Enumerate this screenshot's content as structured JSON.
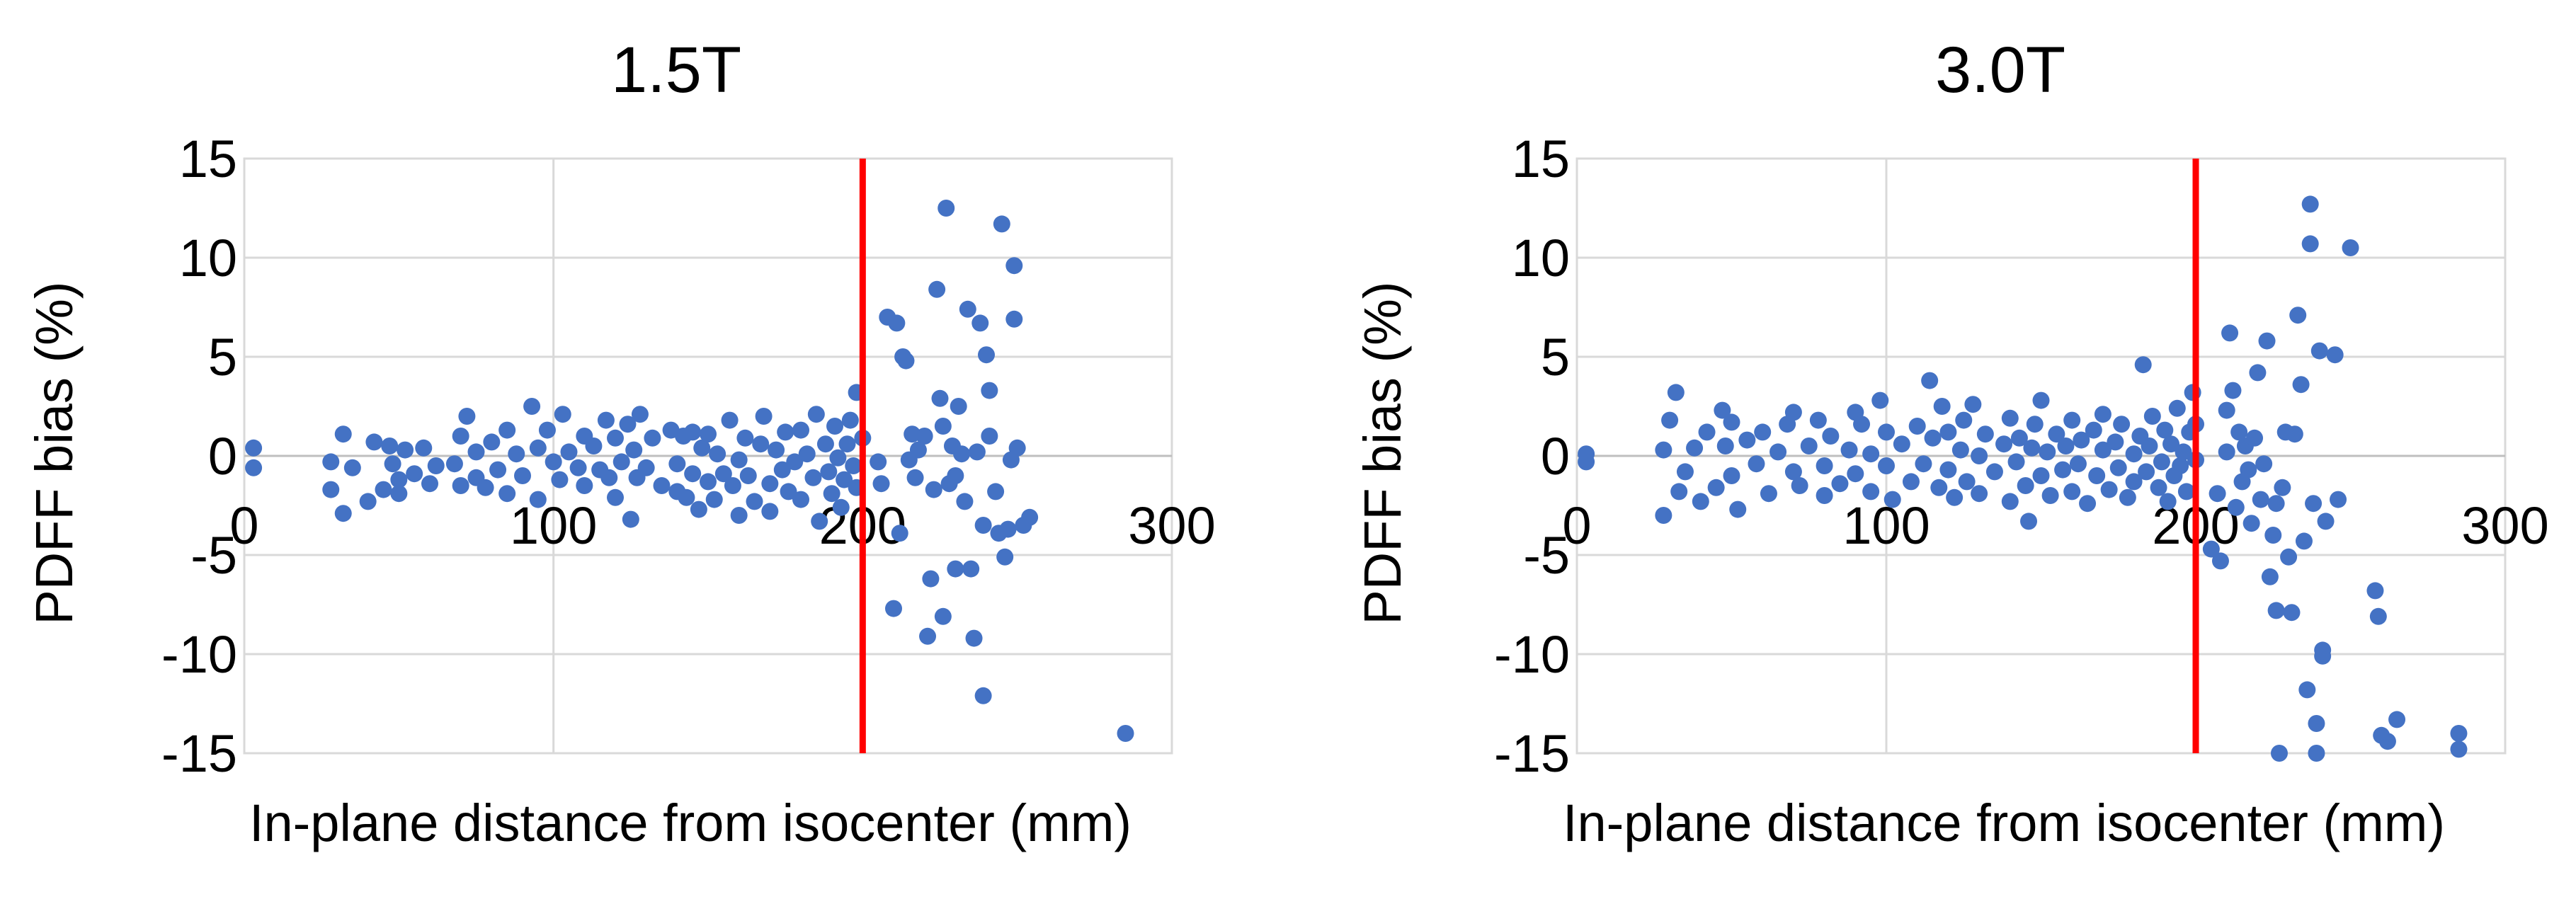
{
  "colors": {
    "points": "#4472c4",
    "threshold": "#ff0000",
    "grid": "#d9d9d9"
  },
  "chart_data": [
    {
      "type": "scatter",
      "title": "1.5T",
      "xlabel": "In-plane distance from isocenter (mm)",
      "ylabel": "PDFF bias (%)",
      "xlim": [
        0,
        300
      ],
      "ylim": [
        -15,
        15
      ],
      "x_ticks": [
        0,
        100,
        200,
        300
      ],
      "y_ticks": [
        15,
        10,
        5,
        0,
        -5,
        -10,
        -15
      ],
      "grid": true,
      "legend": "none",
      "reference_line_x": 200,
      "points": [
        [
          3,
          0.4
        ],
        [
          3,
          -0.6
        ],
        [
          28,
          -0.3
        ],
        [
          28,
          -1.7
        ],
        [
          32,
          1.1
        ],
        [
          32,
          -2.9
        ],
        [
          35,
          -0.6
        ],
        [
          40,
          -2.3
        ],
        [
          42,
          0.7
        ],
        [
          45,
          -1.7
        ],
        [
          47,
          0.5
        ],
        [
          48,
          -0.4
        ],
        [
          50,
          -1.2
        ],
        [
          50,
          -1.9
        ],
        [
          52,
          0.3
        ],
        [
          55,
          -0.9
        ],
        [
          58,
          0.4
        ],
        [
          60,
          -1.4
        ],
        [
          62,
          -0.5
        ],
        [
          68,
          -0.4
        ],
        [
          70,
          1.0
        ],
        [
          70,
          -1.5
        ],
        [
          72,
          2.0
        ],
        [
          75,
          0.2
        ],
        [
          75,
          -1.1
        ],
        [
          78,
          -1.6
        ],
        [
          80,
          0.7
        ],
        [
          82,
          -0.7
        ],
        [
          85,
          1.3
        ],
        [
          85,
          -1.9
        ],
        [
          88,
          0.1
        ],
        [
          90,
          -1.0
        ],
        [
          93,
          2.5
        ],
        [
          95,
          0.4
        ],
        [
          95,
          -2.2
        ],
        [
          98,
          1.3
        ],
        [
          100,
          -0.3
        ],
        [
          102,
          -1.2
        ],
        [
          103,
          2.1
        ],
        [
          105,
          0.2
        ],
        [
          108,
          -0.6
        ],
        [
          110,
          1.0
        ],
        [
          110,
          -1.5
        ],
        [
          113,
          0.5
        ],
        [
          115,
          -0.7
        ],
        [
          117,
          1.8
        ],
        [
          118,
          -1.1
        ],
        [
          120,
          0.9
        ],
        [
          120,
          -2.1
        ],
        [
          122,
          -0.3
        ],
        [
          124,
          1.6
        ],
        [
          125,
          -3.2
        ],
        [
          126,
          0.3
        ],
        [
          127,
          -1.1
        ],
        [
          128,
          2.1
        ],
        [
          130,
          -0.6
        ],
        [
          132,
          0.9
        ],
        [
          135,
          -1.5
        ],
        [
          138,
          1.3
        ],
        [
          140,
          -1.8
        ],
        [
          140,
          -0.4
        ],
        [
          142,
          1.0
        ],
        [
          143,
          -2.1
        ],
        [
          145,
          1.2
        ],
        [
          145,
          -0.9
        ],
        [
          147,
          -2.7
        ],
        [
          148,
          0.4
        ],
        [
          150,
          -1.3
        ],
        [
          150,
          1.1
        ],
        [
          152,
          -2.2
        ],
        [
          153,
          0.1
        ],
        [
          155,
          -0.9
        ],
        [
          157,
          1.8
        ],
        [
          158,
          -1.5
        ],
        [
          160,
          -0.2
        ],
        [
          160,
          -3.0
        ],
        [
          162,
          0.9
        ],
        [
          163,
          -1.0
        ],
        [
          165,
          -2.3
        ],
        [
          167,
          0.6
        ],
        [
          168,
          2.0
        ],
        [
          170,
          -1.4
        ],
        [
          170,
          -2.8
        ],
        [
          172,
          0.3
        ],
        [
          174,
          -0.7
        ],
        [
          175,
          1.2
        ],
        [
          176,
          -1.8
        ],
        [
          178,
          -0.3
        ],
        [
          180,
          1.3
        ],
        [
          180,
          -2.2
        ],
        [
          182,
          0.1
        ],
        [
          184,
          -1.1
        ],
        [
          185,
          2.1
        ],
        [
          186,
          -3.3
        ],
        [
          188,
          0.6
        ],
        [
          189,
          -0.8
        ],
        [
          190,
          -1.9
        ],
        [
          191,
          1.5
        ],
        [
          192,
          -0.1
        ],
        [
          193,
          -2.6
        ],
        [
          194,
          -1.2
        ],
        [
          195,
          0.6
        ],
        [
          196,
          1.8
        ],
        [
          197,
          -0.5
        ],
        [
          198,
          3.2
        ],
        [
          198,
          -1.6
        ],
        [
          200,
          0.9
        ],
        [
          205,
          -0.3
        ],
        [
          206,
          -1.4
        ],
        [
          208,
          7.0
        ],
        [
          210,
          -7.7
        ],
        [
          211,
          6.7
        ],
        [
          212,
          -3.9
        ],
        [
          213,
          5.0
        ],
        [
          214,
          4.8
        ],
        [
          215,
          -0.2
        ],
        [
          216,
          1.1
        ],
        [
          217,
          -1.1
        ],
        [
          218,
          0.3
        ],
        [
          220,
          1.0
        ],
        [
          221,
          -9.1
        ],
        [
          222,
          -6.2
        ],
        [
          223,
          -1.7
        ],
        [
          224,
          8.4
        ],
        [
          225,
          2.9
        ],
        [
          226,
          1.5
        ],
        [
          226,
          -8.1
        ],
        [
          227,
          12.5
        ],
        [
          228,
          -1.4
        ],
        [
          229,
          0.5
        ],
        [
          230,
          -5.7
        ],
        [
          230,
          -1.0
        ],
        [
          231,
          2.5
        ],
        [
          232,
          0.1
        ],
        [
          233,
          -2.3
        ],
        [
          234,
          7.4
        ],
        [
          235,
          -5.7
        ],
        [
          236,
          -9.2
        ],
        [
          237,
          0.2
        ],
        [
          238,
          6.7
        ],
        [
          239,
          -3.5
        ],
        [
          239,
          -12.1
        ],
        [
          240,
          5.1
        ],
        [
          241,
          3.3
        ],
        [
          241,
          1.0
        ],
        [
          243,
          -1.8
        ],
        [
          244,
          -3.9
        ],
        [
          245,
          11.7
        ],
        [
          246,
          -5.1
        ],
        [
          247,
          -3.7
        ],
        [
          248,
          -0.2
        ],
        [
          249,
          9.6
        ],
        [
          249,
          6.9
        ],
        [
          250,
          0.4
        ],
        [
          252,
          -3.5
        ],
        [
          254,
          -3.1
        ],
        [
          285,
          -14.0
        ]
      ]
    },
    {
      "type": "scatter",
      "title": "3.0T",
      "xlabel": "In-plane distance from isocenter (mm)",
      "ylabel": "PDFF bias (%)",
      "xlim": [
        0,
        300
      ],
      "ylim": [
        -15,
        15
      ],
      "x_ticks": [
        0,
        100,
        200,
        300
      ],
      "y_ticks": [
        15,
        10,
        5,
        0,
        -5,
        -10,
        -15
      ],
      "grid": true,
      "legend": "none",
      "reference_line_x": 200,
      "points": [
        [
          3,
          0.1
        ],
        [
          3,
          -0.3
        ],
        [
          28,
          0.3
        ],
        [
          28,
          -3.0
        ],
        [
          30,
          1.8
        ],
        [
          32,
          3.2
        ],
        [
          33,
          -1.8
        ],
        [
          35,
          -0.8
        ],
        [
          38,
          0.4
        ],
        [
          40,
          -2.3
        ],
        [
          42,
          1.2
        ],
        [
          45,
          -1.6
        ],
        [
          47,
          2.3
        ],
        [
          48,
          0.5
        ],
        [
          50,
          -1.0
        ],
        [
          50,
          1.7
        ],
        [
          52,
          -2.7
        ],
        [
          55,
          0.8
        ],
        [
          58,
          -0.4
        ],
        [
          60,
          1.2
        ],
        [
          62,
          -1.9
        ],
        [
          65,
          0.2
        ],
        [
          68,
          1.6
        ],
        [
          70,
          -0.8
        ],
        [
          70,
          2.2
        ],
        [
          72,
          -1.5
        ],
        [
          75,
          0.5
        ],
        [
          78,
          1.8
        ],
        [
          80,
          -2.0
        ],
        [
          80,
          -0.5
        ],
        [
          82,
          1.0
        ],
        [
          85,
          -1.4
        ],
        [
          88,
          0.3
        ],
        [
          90,
          2.2
        ],
        [
          90,
          -0.9
        ],
        [
          92,
          1.6
        ],
        [
          95,
          -1.8
        ],
        [
          95,
          0.1
        ],
        [
          98,
          2.8
        ],
        [
          100,
          -0.5
        ],
        [
          100,
          1.2
        ],
        [
          102,
          -2.2
        ],
        [
          105,
          0.6
        ],
        [
          108,
          -1.3
        ],
        [
          110,
          1.5
        ],
        [
          112,
          -0.4
        ],
        [
          114,
          3.8
        ],
        [
          115,
          0.9
        ],
        [
          117,
          -1.6
        ],
        [
          118,
          2.5
        ],
        [
          120,
          -0.7
        ],
        [
          120,
          1.2
        ],
        [
          122,
          -2.1
        ],
        [
          124,
          0.3
        ],
        [
          125,
          1.8
        ],
        [
          126,
          -1.3
        ],
        [
          128,
          2.6
        ],
        [
          130,
          0.0
        ],
        [
          130,
          -1.9
        ],
        [
          132,
          1.1
        ],
        [
          135,
          -0.8
        ],
        [
          138,
          0.6
        ],
        [
          140,
          -2.3
        ],
        [
          140,
          1.9
        ],
        [
          142,
          -0.3
        ],
        [
          143,
          0.9
        ],
        [
          145,
          -1.5
        ],
        [
          146,
          -3.3
        ],
        [
          147,
          0.4
        ],
        [
          148,
          1.6
        ],
        [
          150,
          -1.0
        ],
        [
          150,
          2.8
        ],
        [
          152,
          0.2
        ],
        [
          153,
          -2.0
        ],
        [
          155,
          1.1
        ],
        [
          157,
          -0.7
        ],
        [
          158,
          0.5
        ],
        [
          160,
          -1.8
        ],
        [
          160,
          1.8
        ],
        [
          162,
          -0.4
        ],
        [
          163,
          0.8
        ],
        [
          165,
          -2.4
        ],
        [
          167,
          1.3
        ],
        [
          168,
          -1.0
        ],
        [
          170,
          0.3
        ],
        [
          170,
          2.1
        ],
        [
          172,
          -1.7
        ],
        [
          174,
          0.7
        ],
        [
          175,
          -0.6
        ],
        [
          176,
          1.6
        ],
        [
          178,
          -2.1
        ],
        [
          180,
          0.1
        ],
        [
          180,
          -1.3
        ],
        [
          182,
          1.0
        ],
        [
          183,
          4.6
        ],
        [
          184,
          -0.8
        ],
        [
          185,
          0.5
        ],
        [
          186,
          2.0
        ],
        [
          188,
          -1.6
        ],
        [
          189,
          -0.3
        ],
        [
          190,
          1.3
        ],
        [
          191,
          -2.3
        ],
        [
          192,
          0.6
        ],
        [
          193,
          -1.0
        ],
        [
          194,
          2.4
        ],
        [
          195,
          -0.5
        ],
        [
          196,
          0.2
        ],
        [
          197,
          -1.8
        ],
        [
          198,
          1.2
        ],
        [
          199,
          3.2
        ],
        [
          200,
          -0.2
        ],
        [
          200,
          1.6
        ],
        [
          205,
          -4.7
        ],
        [
          207,
          -1.9
        ],
        [
          208,
          -5.3
        ],
        [
          210,
          0.2
        ],
        [
          210,
          2.3
        ],
        [
          211,
          6.2
        ],
        [
          212,
          3.3
        ],
        [
          213,
          -2.6
        ],
        [
          214,
          1.2
        ],
        [
          215,
          -1.3
        ],
        [
          216,
          0.5
        ],
        [
          217,
          -0.7
        ],
        [
          218,
          -3.4
        ],
        [
          219,
          0.9
        ],
        [
          220,
          4.2
        ],
        [
          221,
          -2.2
        ],
        [
          222,
          -0.4
        ],
        [
          223,
          5.8
        ],
        [
          224,
          -6.1
        ],
        [
          225,
          -4.0
        ],
        [
          226,
          -2.4
        ],
        [
          226,
          -7.8
        ],
        [
          227,
          -15.0
        ],
        [
          228,
          -1.6
        ],
        [
          229,
          1.2
        ],
        [
          230,
          -5.1
        ],
        [
          231,
          -7.9
        ],
        [
          232,
          1.1
        ],
        [
          233,
          7.1
        ],
        [
          234,
          3.6
        ],
        [
          235,
          -4.3
        ],
        [
          236,
          -11.8
        ],
        [
          237,
          12.7
        ],
        [
          237,
          10.7
        ],
        [
          238,
          -2.4
        ],
        [
          239,
          -13.5
        ],
        [
          239,
          -15.0
        ],
        [
          240,
          5.3
        ],
        [
          241,
          -9.8
        ],
        [
          241,
          -10.1
        ],
        [
          242,
          -3.3
        ],
        [
          245,
          5.1
        ],
        [
          246,
          -2.2
        ],
        [
          250,
          10.5
        ],
        [
          258,
          -6.8
        ],
        [
          259,
          -8.1
        ],
        [
          260,
          -14.1
        ],
        [
          262,
          -14.4
        ],
        [
          265,
          -13.3
        ],
        [
          285,
          -14.0
        ],
        [
          285,
          -14.8
        ]
      ]
    }
  ]
}
